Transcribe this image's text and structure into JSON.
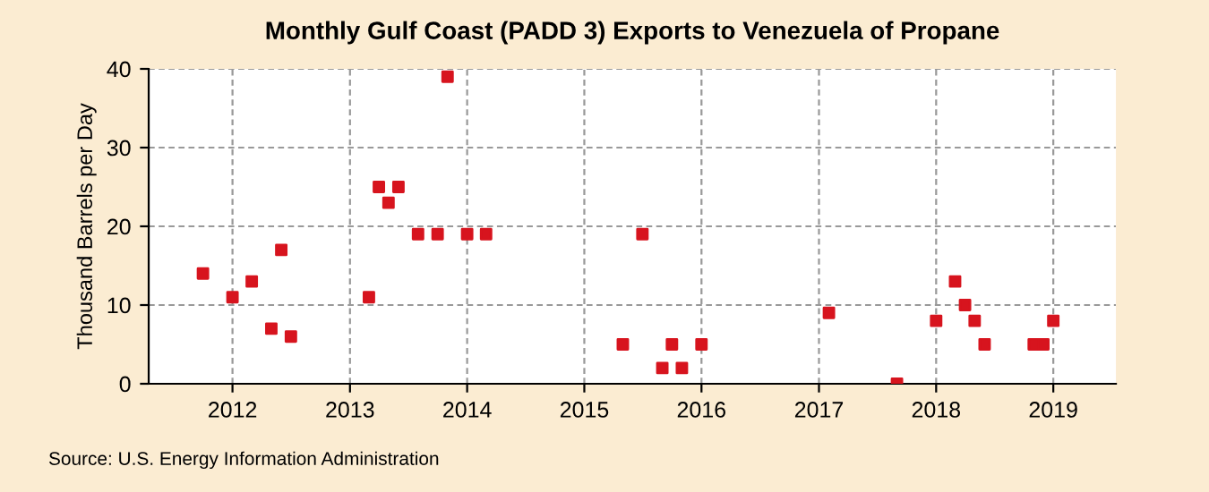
{
  "chart_data": {
    "type": "scatter",
    "title": "Monthly Gulf Coast (PADD 3) Exports to Venezuela of Propane",
    "ylabel": "Thousand Barrels per Day",
    "annotations": [
      "Source: U.S. Energy Information Administration"
    ],
    "x": [
      "2011-10",
      "2012-01",
      "2012-03",
      "2012-05",
      "2012-06",
      "2012-07",
      "2013-03",
      "2013-04",
      "2013-05",
      "2013-06",
      "2013-08",
      "2013-10",
      "2013-11",
      "2014-01",
      "2014-03",
      "2015-05",
      "2015-07",
      "2015-09",
      "2015-10",
      "2015-11",
      "2016-01",
      "2017-02",
      "2017-09",
      "2018-01",
      "2018-03",
      "2018-04",
      "2018-05",
      "2018-06",
      "2018-11",
      "2018-12",
      "2019-01"
    ],
    "series": [
      {
        "color": "#d7141e",
        "values": [
          14,
          11,
          13,
          7,
          17,
          6,
          11,
          25,
          23,
          25,
          19,
          19,
          39,
          19,
          19,
          5,
          19,
          2,
          5,
          2,
          5,
          9,
          0,
          8,
          13,
          10,
          8,
          5,
          5,
          5,
          8
        ]
      }
    ],
    "xlim": [
      "2011-04-15",
      "2019-07-15"
    ],
    "xticks": [
      {
        "value": "2012-01-01",
        "label": "2012"
      },
      {
        "value": "2013-01-01",
        "label": "2013"
      },
      {
        "value": "2014-01-01",
        "label": "2014"
      },
      {
        "value": "2015-01-01",
        "label": "2015"
      },
      {
        "value": "2016-01-01",
        "label": "2016"
      },
      {
        "value": "2017-01-01",
        "label": "2017"
      },
      {
        "value": "2018-01-01",
        "label": "2018"
      },
      {
        "value": "2019-01-01",
        "label": "2019"
      }
    ],
    "ylim": [
      0,
      40
    ],
    "yticks": [
      0,
      10,
      20,
      30,
      40
    ],
    "grid": true,
    "marker": "square"
  }
}
